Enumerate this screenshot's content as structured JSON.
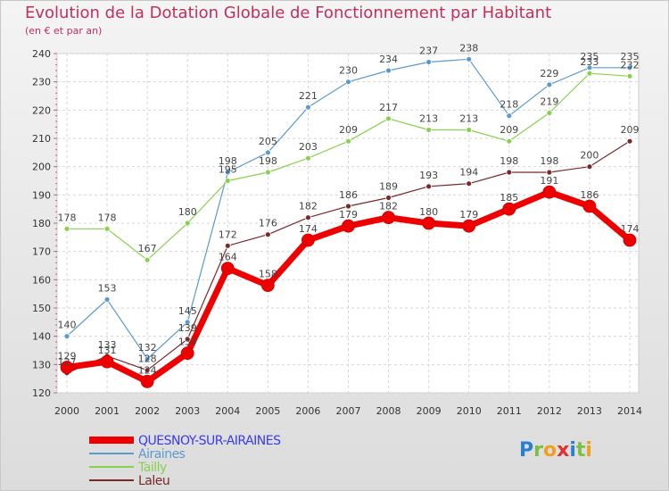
{
  "title": "Evolution de la Dotation Globale de Fonctionnement par Habitant",
  "subtitle": "(en € et par an)",
  "logo": {
    "text": "Proxiti",
    "letters": [
      {
        "ch": "P",
        "color": "#2a7fd0"
      },
      {
        "ch": "r",
        "color": "#7cc040"
      },
      {
        "ch": "o",
        "color": "#f0a020"
      },
      {
        "ch": "x",
        "color": "#e03030"
      },
      {
        "ch": "i",
        "color": "#2a7fd0"
      },
      {
        "ch": "t",
        "color": "#7cc040"
      },
      {
        "ch": "i",
        "color": "#f0a020"
      }
    ]
  },
  "chart_data": {
    "type": "line",
    "title": "Evolution de la Dotation Globale de Fonctionnement par Habitant",
    "subtitle": "(en € et par an)",
    "x": [
      "2000",
      "2001",
      "2002",
      "2003",
      "2004",
      "2005",
      "2006",
      "2007",
      "2008",
      "2009",
      "2010",
      "2011",
      "2012",
      "2013",
      "2014"
    ],
    "ylim": [
      120,
      240
    ],
    "yticks": [
      120,
      130,
      140,
      150,
      160,
      170,
      180,
      190,
      200,
      210,
      220,
      230,
      240
    ],
    "grid": true,
    "legend": "bottom-left",
    "series": [
      {
        "name": "QUESNOY-SUR-AIRAINES",
        "color": "#ee0000",
        "legend_color": "#3a3aee",
        "values": [
          129,
          131,
          124,
          134,
          164,
          158,
          174,
          179,
          182,
          180,
          179,
          185,
          191,
          186,
          174
        ]
      },
      {
        "name": "Airaines",
        "color": "#5a9ad0",
        "legend_color": "#5a9ad0",
        "values": [
          140,
          153,
          132,
          145,
          198,
          205,
          221,
          230,
          234,
          237,
          238,
          218,
          229,
          235,
          235
        ]
      },
      {
        "name": "Tailly",
        "color": "#88d050",
        "legend_color": "#88d050",
        "values": [
          178,
          178,
          167,
          180,
          195,
          198,
          203,
          209,
          217,
          213,
          213,
          209,
          219,
          233,
          232
        ]
      },
      {
        "name": "Laleu",
        "color": "#7a2828",
        "legend_color": "#7a2828",
        "values": [
          127,
          133,
          128,
          139,
          172,
          176,
          182,
          186,
          189,
          193,
          194,
          198,
          198,
          200,
          209
        ]
      }
    ]
  }
}
